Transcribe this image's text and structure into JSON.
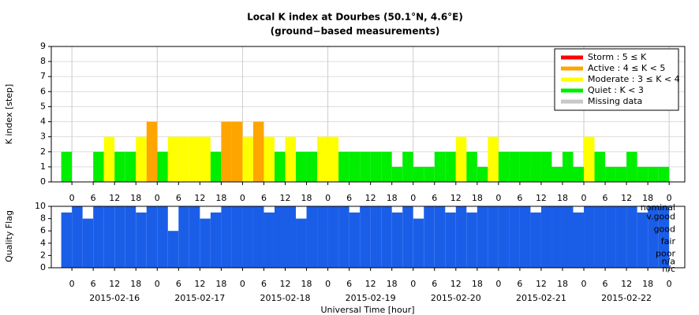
{
  "chart_data": [
    {
      "type": "bar",
      "title": "Local K index at Dourbes (50.1°N, 4.6°E)",
      "subtitle": "(ground−based measurements)",
      "y_label": "K index [step]",
      "x": [
        -3,
        0,
        3,
        6,
        9,
        12,
        15,
        18,
        21,
        24,
        27,
        30,
        33,
        36,
        39,
        42,
        45,
        48,
        51,
        54,
        57,
        60,
        63,
        66,
        69,
        72,
        75,
        78,
        81,
        84,
        87,
        90,
        93,
        96,
        99,
        102,
        105,
        108,
        111,
        114,
        117,
        120,
        123,
        126,
        129,
        132,
        135,
        138,
        141,
        144,
        147,
        150,
        153,
        156,
        159,
        162,
        165
      ],
      "bin_width": 3,
      "values": [
        2,
        0,
        0,
        2,
        3,
        2,
        2,
        3,
        4,
        2,
        3,
        3,
        3,
        3,
        2,
        4,
        4,
        3,
        4,
        3,
        2,
        3,
        2,
        2,
        3,
        3,
        2,
        2,
        2,
        2,
        2,
        1,
        2,
        1,
        1,
        2,
        2,
        3,
        2,
        1,
        3,
        2,
        2,
        2,
        2,
        2,
        1,
        2,
        1,
        3,
        2,
        1,
        1,
        2,
        1,
        1,
        1
      ],
      "legend": [
        {
          "name": "Storm : 5 ≤ K",
          "color": "#ff0000",
          "min": 5
        },
        {
          "name": "Active : 4 ≤ K < 5",
          "color": "#ffa500",
          "min": 4
        },
        {
          "name": "Moderate : 3 ≤ K < 4",
          "color": "#ffff00",
          "min": 3
        },
        {
          "name": "Quiet : K < 3",
          "color": "#00ee00",
          "min": 0
        },
        {
          "name": "Missing data",
          "color": "#c8c8c8"
        }
      ],
      "legend_position": "upper right",
      "xlim": [
        -5.8,
        172.4
      ],
      "ylim": [
        0,
        9
      ],
      "yticks": [
        0,
        1,
        2,
        3,
        4,
        5,
        6,
        7,
        8,
        9
      ],
      "grid": true,
      "xticks": [
        0,
        6,
        12,
        18,
        {
          "value": 24,
          "label": "0"
        },
        {
          "value": 30,
          "label": "6"
        },
        {
          "value": 36,
          "label": "12"
        },
        {
          "value": 42,
          "label": "18"
        },
        {
          "value": 48,
          "label": "0"
        },
        {
          "value": 54,
          "label": "6"
        },
        {
          "value": 60,
          "label": "12"
        },
        {
          "value": 66,
          "label": "18"
        },
        {
          "value": 72,
          "label": "0"
        },
        {
          "value": 78,
          "label": "6"
        },
        {
          "value": 84,
          "label": "12"
        },
        {
          "value": 90,
          "label": "18"
        },
        {
          "value": 96,
          "label": "0"
        },
        {
          "value": 102,
          "label": "6"
        },
        {
          "value": 108,
          "label": "12"
        },
        {
          "value": 114,
          "label": "18"
        },
        {
          "value": 120,
          "label": "0"
        },
        {
          "value": 126,
          "label": "6"
        },
        {
          "value": 132,
          "label": "12"
        },
        {
          "value": 138,
          "label": "18"
        },
        {
          "value": 144,
          "label": "0"
        },
        {
          "value": 150,
          "label": "6"
        },
        {
          "value": 156,
          "label": "12"
        },
        {
          "value": 162,
          "label": "18"
        },
        {
          "value": 168,
          "label": "0"
        }
      ]
    },
    {
      "type": "bar",
      "y_label": "Quality Flag",
      "x_label": "Universal Time [hour]",
      "color": "#1a5ee8",
      "values": [
        9,
        10,
        8,
        10,
        10,
        10,
        10,
        9,
        10,
        10,
        6,
        10,
        10,
        8,
        9,
        10,
        10,
        10,
        10,
        9,
        10,
        10,
        8,
        10,
        10,
        10,
        10,
        9,
        10,
        10,
        10,
        9,
        10,
        8,
        10,
        10,
        9,
        10,
        9,
        10,
        10,
        10,
        10,
        10,
        9,
        10,
        10,
        10,
        9,
        10,
        10,
        10,
        10,
        10,
        9,
        10,
        10
      ],
      "ylim": [
        0,
        10
      ],
      "yticks": [
        0,
        2,
        4,
        6,
        8,
        10
      ],
      "date_labels": [
        {
          "value": 12,
          "label": "2015-02-16"
        },
        {
          "value": 36,
          "label": "2015-02-17"
        },
        {
          "value": 60,
          "label": "2015-02-18"
        },
        {
          "value": 84,
          "label": "2015-02-19"
        },
        {
          "value": 108,
          "label": "2015-02-20"
        },
        {
          "value": 132,
          "label": "2015-02-21"
        },
        {
          "value": 156,
          "label": "2015-02-22"
        }
      ],
      "level_labels": [
        {
          "value": 10,
          "label": "nominal"
        },
        {
          "value": 8.5,
          "label": "v.good"
        },
        {
          "value": 6.5,
          "label": "good"
        },
        {
          "value": 4.5,
          "label": "fair"
        },
        {
          "value": 2.5,
          "label": "poor"
        },
        {
          "value": 1.2,
          "label": "n/a"
        },
        {
          "value": 0,
          "label": "n/c"
        }
      ]
    }
  ]
}
